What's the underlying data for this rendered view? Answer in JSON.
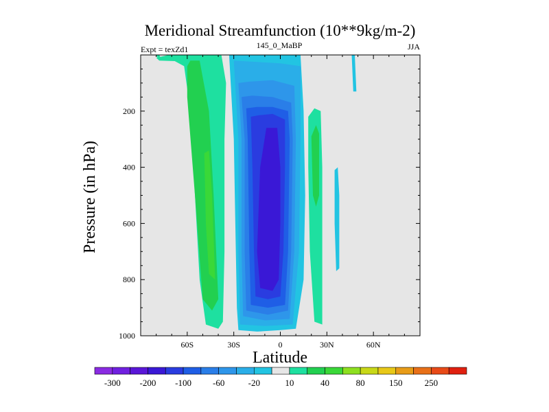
{
  "chart_data": {
    "type": "contour",
    "title": "Meridional Streamfunction (10**9kg/m-2)",
    "subtitle_left": "Expt = texZd1",
    "subtitle_center": "145_0_MaBP",
    "subtitle_right": "JJA",
    "xlabel": "Latitude",
    "ylabel": "Pressure (in hPa)",
    "xlim": [
      -90,
      90
    ],
    "ylim": [
      0,
      1000
    ],
    "y_inverted": true,
    "x_ticks": [
      {
        "value": -60,
        "label": "60S"
      },
      {
        "value": -30,
        "label": "30S"
      },
      {
        "value": 0,
        "label": "0"
      },
      {
        "value": 30,
        "label": "30N"
      },
      {
        "value": 60,
        "label": "60N"
      }
    ],
    "y_ticks": [
      {
        "value": 200,
        "label": "200"
      },
      {
        "value": 400,
        "label": "400"
      },
      {
        "value": 600,
        "label": "600"
      },
      {
        "value": 800,
        "label": "800"
      },
      {
        "value": 1000,
        "label": "1000"
      }
    ],
    "colorbar": {
      "colors": [
        "#8a2be2",
        "#7020e0",
        "#5a16d8",
        "#3a18d6",
        "#2a3ce0",
        "#1f5ee6",
        "#2a7ee8",
        "#2e96ea",
        "#2aaee8",
        "#22c4e2",
        "#e6e6e6",
        "#1ee0a0",
        "#22d050",
        "#3ad838",
        "#8ee020",
        "#c8d818",
        "#e8c818",
        "#e89c18",
        "#e87018",
        "#e84a18",
        "#e02010"
      ],
      "labels": [
        {
          "boundary": 1,
          "label": "-300"
        },
        {
          "boundary": 3,
          "label": "-200"
        },
        {
          "boundary": 5,
          "label": "-100"
        },
        {
          "boundary": 7,
          "label": "-60"
        },
        {
          "boundary": 9,
          "label": "-20"
        },
        {
          "boundary": 11,
          "label": "10"
        },
        {
          "boundary": 13,
          "label": "40"
        },
        {
          "boundary": 15,
          "label": "80"
        },
        {
          "boundary": 17,
          "label": "150"
        },
        {
          "boundary": 19,
          "label": "250"
        }
      ]
    },
    "features": [
      {
        "name": "southern-positive-cell-outer",
        "color": "#1ee0a0",
        "points": [
          [
            -78,
            20
          ],
          [
            -68,
            22
          ],
          [
            -62,
            40
          ],
          [
            -58,
            200
          ],
          [
            -55,
            500
          ],
          [
            -52,
            800
          ],
          [
            -48,
            960
          ],
          [
            -40,
            975
          ],
          [
            -37,
            950
          ],
          [
            -36,
            700
          ],
          [
            -36,
            300
          ],
          [
            -35,
            100
          ],
          [
            -38,
            0
          ],
          [
            -55,
            0
          ],
          [
            -72,
            0
          ],
          [
            -80,
            10
          ]
        ]
      },
      {
        "name": "southern-positive-cell-inner",
        "color": "#22d050",
        "points": [
          [
            -58,
            20
          ],
          [
            -52,
            20
          ],
          [
            -46,
            200
          ],
          [
            -43,
            500
          ],
          [
            -40,
            870
          ],
          [
            -44,
            910
          ],
          [
            -50,
            870
          ],
          [
            -55,
            500
          ],
          [
            -60,
            150
          ],
          [
            -60,
            40
          ]
        ]
      },
      {
        "name": "southern-positive-cell-core",
        "color": "#3ad838",
        "points": [
          [
            -49,
            350
          ],
          [
            -46,
            340
          ],
          [
            -44,
            500
          ],
          [
            -42,
            800
          ],
          [
            -46,
            780
          ],
          [
            -48,
            600
          ]
        ]
      },
      {
        "name": "southern-positive-speck",
        "color": "#1ee0a0",
        "points": [
          [
            -80,
            0
          ],
          [
            -78,
            0
          ],
          [
            -77,
            12
          ],
          [
            -79,
            12
          ]
        ]
      },
      {
        "name": "hadley-negative-cell-outer",
        "color": "#22c4e2",
        "points": [
          [
            -33,
            0
          ],
          [
            -30,
            300
          ],
          [
            -29,
            600
          ],
          [
            -28,
            900
          ],
          [
            -27,
            980
          ],
          [
            -15,
            985
          ],
          [
            0,
            980
          ],
          [
            10,
            975
          ],
          [
            15,
            800
          ],
          [
            16,
            500
          ],
          [
            15,
            200
          ],
          [
            13,
            0
          ],
          [
            -20,
            0
          ]
        ]
      },
      {
        "name": "hadley-negative-cell-2",
        "color": "#2aaee8",
        "points": [
          [
            -30,
            20
          ],
          [
            -27,
            300
          ],
          [
            -27,
            700
          ],
          [
            -26,
            960
          ],
          [
            -10,
            965
          ],
          [
            8,
            960
          ],
          [
            12,
            700
          ],
          [
            13,
            300
          ],
          [
            13,
            40
          ],
          [
            0,
            30
          ],
          [
            -15,
            25
          ]
        ]
      },
      {
        "name": "hadley-negative-cell-3",
        "color": "#2e96ea",
        "points": [
          [
            -27,
            100
          ],
          [
            -25,
            300
          ],
          [
            -25,
            700
          ],
          [
            -24,
            930
          ],
          [
            -10,
            945
          ],
          [
            6,
            940
          ],
          [
            9,
            700
          ],
          [
            10,
            300
          ],
          [
            9,
            110
          ],
          [
            -5,
            90
          ],
          [
            -20,
            95
          ]
        ]
      },
      {
        "name": "hadley-negative-cell-4",
        "color": "#2a7ee8",
        "points": [
          [
            -25,
            150
          ],
          [
            -23,
            300
          ],
          [
            -23,
            700
          ],
          [
            -22,
            910
          ],
          [
            -8,
            925
          ],
          [
            5,
            910
          ],
          [
            7,
            700
          ],
          [
            8,
            300
          ],
          [
            7,
            170
          ],
          [
            -5,
            150
          ],
          [
            -18,
            145
          ]
        ]
      },
      {
        "name": "hadley-negative-cell-5",
        "color": "#1f5ee6",
        "points": [
          [
            -22,
            190
          ],
          [
            -21,
            300
          ],
          [
            -20,
            700
          ],
          [
            -19,
            890
          ],
          [
            -8,
            900
          ],
          [
            3,
            890
          ],
          [
            5,
            700
          ],
          [
            6,
            300
          ],
          [
            5,
            200
          ],
          [
            -5,
            185
          ],
          [
            -15,
            185
          ]
        ]
      },
      {
        "name": "hadley-negative-cell-6",
        "color": "#2a3ce0",
        "points": [
          [
            -19,
            220
          ],
          [
            -18,
            400
          ],
          [
            -17,
            700
          ],
          [
            -16,
            860
          ],
          [
            -8,
            870
          ],
          [
            0,
            860
          ],
          [
            2,
            700
          ],
          [
            3,
            400
          ],
          [
            3,
            230
          ],
          [
            -5,
            210
          ],
          [
            -14,
            215
          ]
        ]
      },
      {
        "name": "hadley-negative-core",
        "color": "#3a18d6",
        "points": [
          [
            -9,
            260
          ],
          [
            -13,
            400
          ],
          [
            -15,
            700
          ],
          [
            -13,
            830
          ],
          [
            -5,
            840
          ],
          [
            -1,
            800
          ],
          [
            0,
            600
          ],
          [
            0,
            400
          ],
          [
            -2,
            260
          ]
        ]
      },
      {
        "name": "northern-positive-cell-outer",
        "color": "#1ee0a0",
        "points": [
          [
            18,
            220
          ],
          [
            22,
            190
          ],
          [
            26,
            200
          ],
          [
            27,
            400
          ],
          [
            27,
            700
          ],
          [
            27,
            960
          ],
          [
            22,
            950
          ],
          [
            19,
            700
          ],
          [
            18,
            400
          ]
        ]
      },
      {
        "name": "northern-positive-core",
        "color": "#22d050",
        "points": [
          [
            20,
            290
          ],
          [
            23,
            250
          ],
          [
            25,
            280
          ],
          [
            25,
            500
          ],
          [
            23,
            540
          ],
          [
            21,
            500
          ]
        ]
      },
      {
        "name": "northern-negative-strip",
        "color": "#22c4e2",
        "points": [
          [
            35,
            410
          ],
          [
            37,
            400
          ],
          [
            38,
            500
          ],
          [
            38,
            760
          ],
          [
            36,
            770
          ],
          [
            35,
            600
          ]
        ]
      },
      {
        "name": "high-lat-negative-sliver",
        "color": "#22c4e2",
        "points": [
          [
            46,
            0
          ],
          [
            48,
            0
          ],
          [
            49,
            130
          ],
          [
            47,
            130
          ]
        ]
      }
    ]
  }
}
